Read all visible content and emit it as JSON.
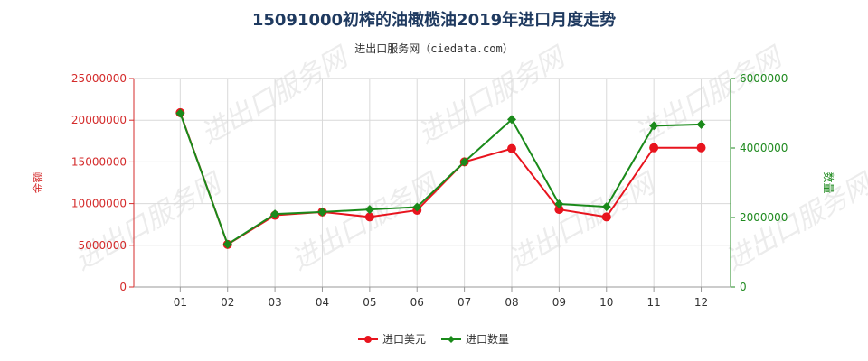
{
  "chart_data": {
    "type": "line",
    "title": "15091000初榨的油橄榄油2019年进口月度走势",
    "subtitle": "进出口服务网（ciedata.com）",
    "watermark": "进出口服务网",
    "categories": [
      "01",
      "02",
      "03",
      "04",
      "05",
      "06",
      "07",
      "08",
      "09",
      "10",
      "11",
      "12"
    ],
    "y_left": {
      "label": "金额",
      "lim": [
        0,
        25000000
      ],
      "ticks": [
        "0",
        "5000000",
        "10000000",
        "15000000",
        "20000000",
        "25000000"
      ],
      "color": "#d42b2b"
    },
    "y_right": {
      "label": "数量",
      "lim": [
        0,
        6000000
      ],
      "ticks": [
        "0",
        "2000000",
        "4000000",
        "6000000"
      ],
      "color": "#1f8a1f"
    },
    "series": [
      {
        "name": "进口美元",
        "axis": "left",
        "color": "#e8141e",
        "marker": "circle",
        "values": [
          20900000,
          5100000,
          8600000,
          9000000,
          8400000,
          9200000,
          15000000,
          16600000,
          9300000,
          8400000,
          16700000,
          16700000
        ]
      },
      {
        "name": "进口数量",
        "axis": "right",
        "color": "#1a8a1a",
        "marker": "diamond",
        "values": [
          5000000,
          1230000,
          2100000,
          2160000,
          2230000,
          2300000,
          3600000,
          4820000,
          2390000,
          2310000,
          4640000,
          4680000
        ]
      }
    ],
    "grid": true,
    "legend_position": "bottom-center"
  }
}
